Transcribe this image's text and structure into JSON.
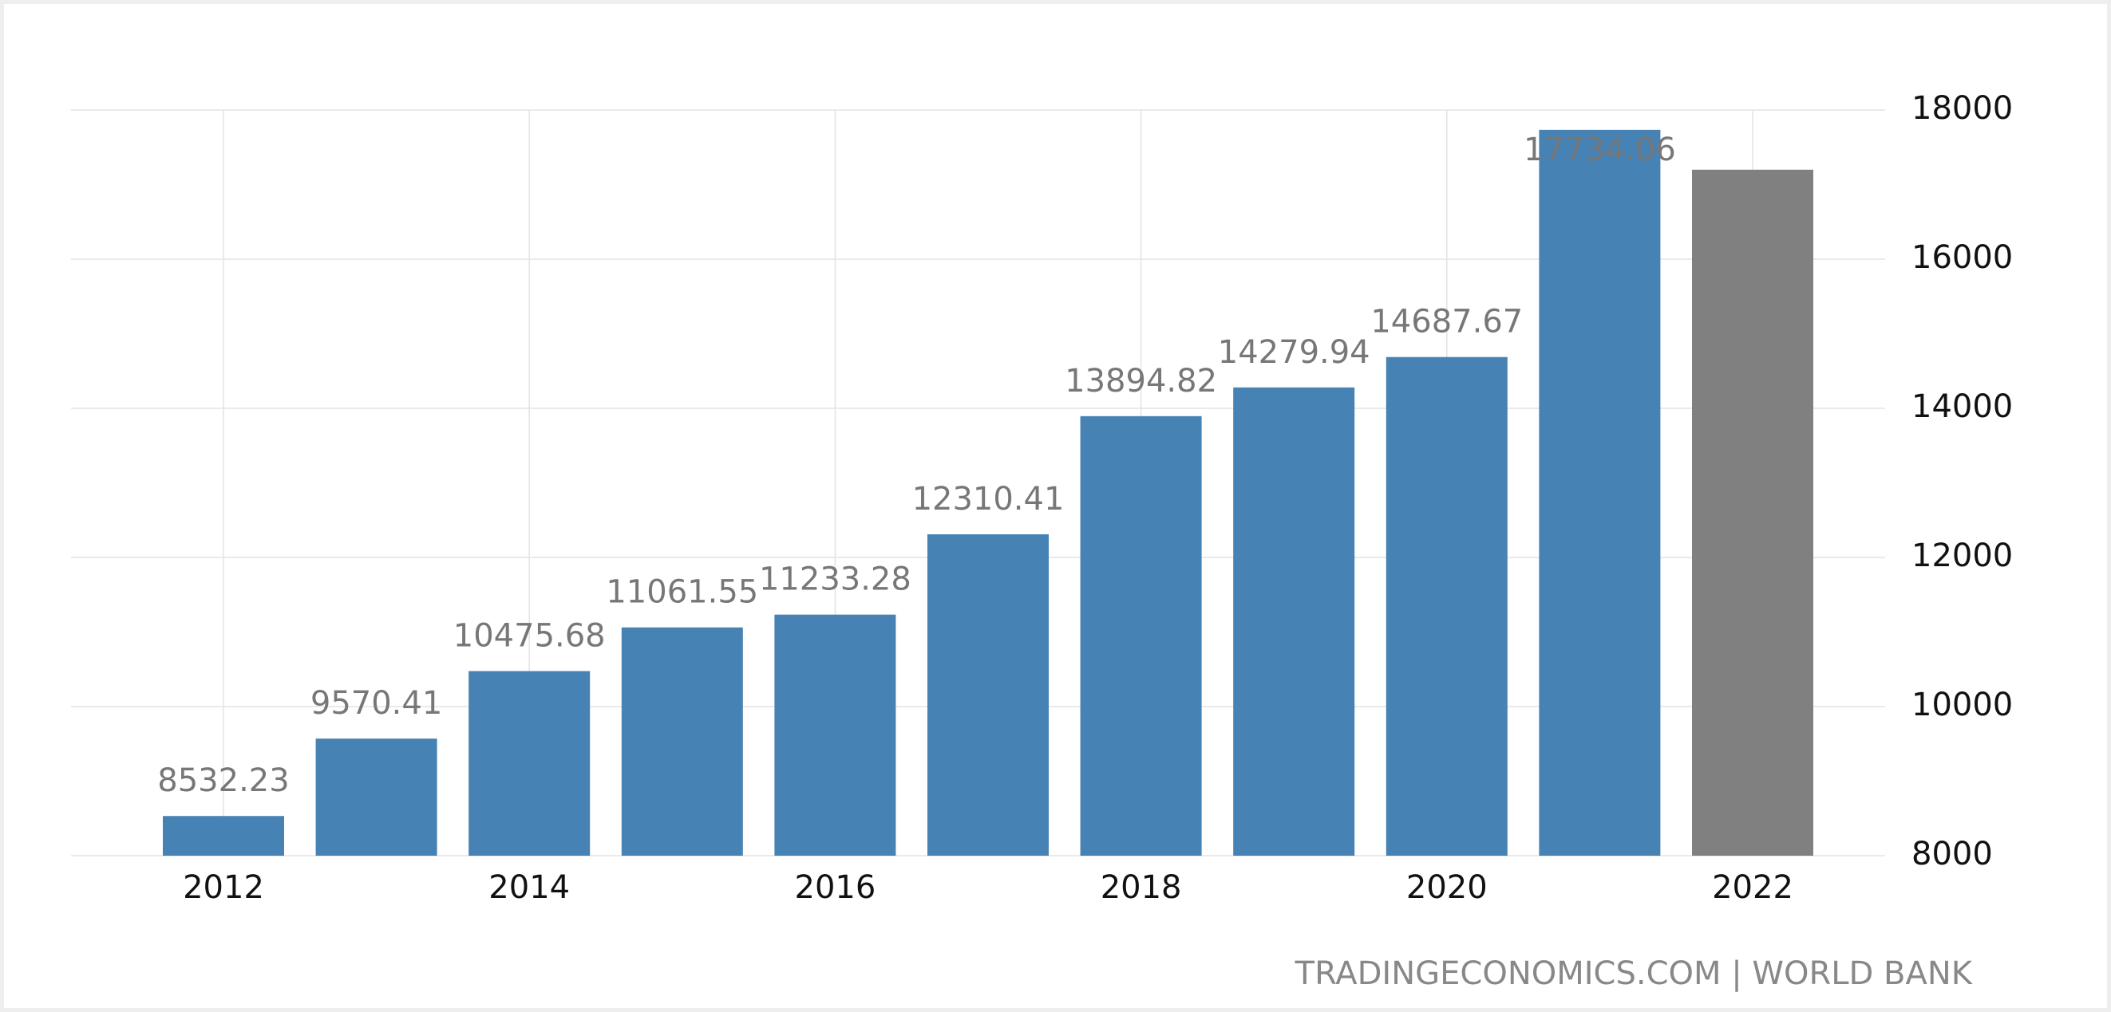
{
  "chart_data": {
    "type": "bar",
    "categories": [
      "2012",
      null,
      "2014",
      null,
      "2016",
      null,
      "2018",
      null,
      "2020",
      null,
      "2022"
    ],
    "values": [
      8532.23,
      9570.41,
      10475.68,
      11061.55,
      11233.28,
      12310.41,
      13894.82,
      14279.94,
      14687.67,
      17734.06,
      17200
    ],
    "value_labels": [
      "8532.23",
      "9570.41",
      "10475.68",
      "11061.55",
      "11233.28",
      "12310.41",
      "13894.82",
      "14279.94",
      "14687.67",
      "17734.06",
      null
    ],
    "colors": [
      "#4682b4",
      "#4682b4",
      "#4682b4",
      "#4682b4",
      "#4682b4",
      "#4682b4",
      "#4682b4",
      "#4682b4",
      "#4682b4",
      "#4682b4",
      "#808080"
    ],
    "ylim": [
      8000,
      18000
    ],
    "yticks": [
      8000,
      10000,
      12000,
      14000,
      16000,
      18000
    ],
    "y_axis_side": "right",
    "grid": true,
    "source": "TRADINGECONOMICS.COM | WORLD BANK"
  }
}
